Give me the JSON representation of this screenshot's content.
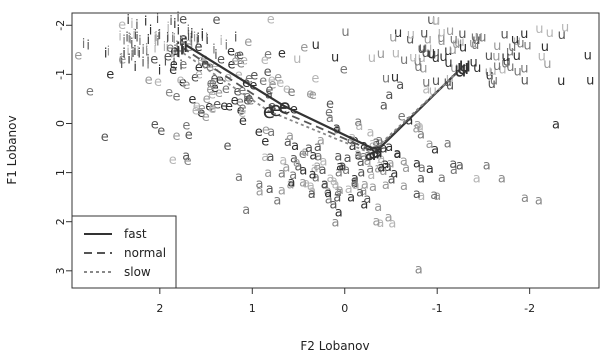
{
  "chart_data": {
    "type": "scatter",
    "title": "",
    "xlabel": "F2 Lobanov",
    "ylabel": "F1 Lobanov",
    "xlim": [
      2.95,
      -2.75
    ],
    "ylim": [
      3.35,
      -2.25
    ],
    "x_reversed": true,
    "y_reversed": true,
    "xticks": [
      2,
      1,
      0,
      -1,
      -2
    ],
    "xtick_labels": [
      "2",
      "1",
      "0",
      "-1",
      "-2"
    ],
    "yticks": [
      -2,
      -1,
      0,
      1,
      2,
      3
    ],
    "ytick_labels": [
      "-2",
      "-1",
      "0",
      "1",
      "2",
      "3"
    ],
    "legend": {
      "placement": "bottom-left",
      "entries": [
        {
          "label": "fast",
          "line_style": "solid",
          "color": "#333333"
        },
        {
          "label": "normal",
          "line_style": "dashed",
          "color": "#555555"
        },
        {
          "label": "slow",
          "line_style": "dotted",
          "color": "#888888"
        }
      ]
    },
    "token_colors": [
      "#2f2f2f",
      "#555555",
      "#777777",
      "#999999",
      "#b5b5b5"
    ],
    "vowels": [
      {
        "label": "i",
        "centroid": [
          1.9,
          -1.55
        ],
        "spread": [
          0.35,
          0.22
        ],
        "count": 70
      },
      {
        "label": "e",
        "centroid": [
          1.3,
          -0.7
        ],
        "spread": [
          0.55,
          0.55
        ],
        "count": 120
      },
      {
        "label": "a",
        "centroid": [
          -0.25,
          0.95
        ],
        "spread": [
          0.6,
          0.55
        ],
        "count": 150
      },
      {
        "label": "u",
        "centroid": [
          -1.35,
          -1.25
        ],
        "spread": [
          0.7,
          0.35
        ],
        "count": 80
      },
      {
        "label": "u",
        "centroid": [
          -1.0,
          -1.5
        ],
        "spread": [
          0.35,
          0.3
        ],
        "count": 20
      },
      {
        "label": "i",
        "centroid": [
          2.3,
          -1.5
        ],
        "spread": [
          0.25,
          0.25
        ],
        "count": 20
      }
    ],
    "outlier_tokens": [
      {
        "label": "e",
        "x": 1.7,
        "y": 0.85
      },
      {
        "label": "e",
        "x": 1.9,
        "y": -0.55
      },
      {
        "label": "a",
        "x": -0.8,
        "y": 3.05
      },
      {
        "label": "a",
        "x": -2.1,
        "y": 1.65
      },
      {
        "label": "a",
        "x": -1.95,
        "y": 1.6
      },
      {
        "label": "a",
        "x": -1.7,
        "y": 1.2
      },
      {
        "label": "a",
        "x": 0.1,
        "y": 2.1
      }
    ],
    "trajectories": [
      {
        "name": "fast",
        "points": [
          {
            "label": "i",
            "x": 1.72,
            "y": -1.6
          },
          {
            "label": "e",
            "x": 0.65,
            "y": -0.35
          },
          {
            "label": "a",
            "x": -0.35,
            "y": 0.55
          },
          {
            "label": "u",
            "x": -1.3,
            "y": -1.2
          }
        ]
      },
      {
        "name": "normal",
        "points": [
          {
            "label": "i",
            "x": 1.76,
            "y": -1.55
          },
          {
            "label": "e",
            "x": 0.75,
            "y": -0.3
          },
          {
            "label": "a",
            "x": -0.32,
            "y": 0.57
          },
          {
            "label": "u",
            "x": -1.28,
            "y": -1.15
          }
        ]
      },
      {
        "name": "slow",
        "points": [
          {
            "label": "i",
            "x": 1.8,
            "y": -1.5
          },
          {
            "label": "e",
            "x": 0.82,
            "y": -0.25
          },
          {
            "label": "a",
            "x": -0.28,
            "y": 0.6
          },
          {
            "label": "u",
            "x": -1.25,
            "y": -1.1
          }
        ]
      }
    ]
  }
}
